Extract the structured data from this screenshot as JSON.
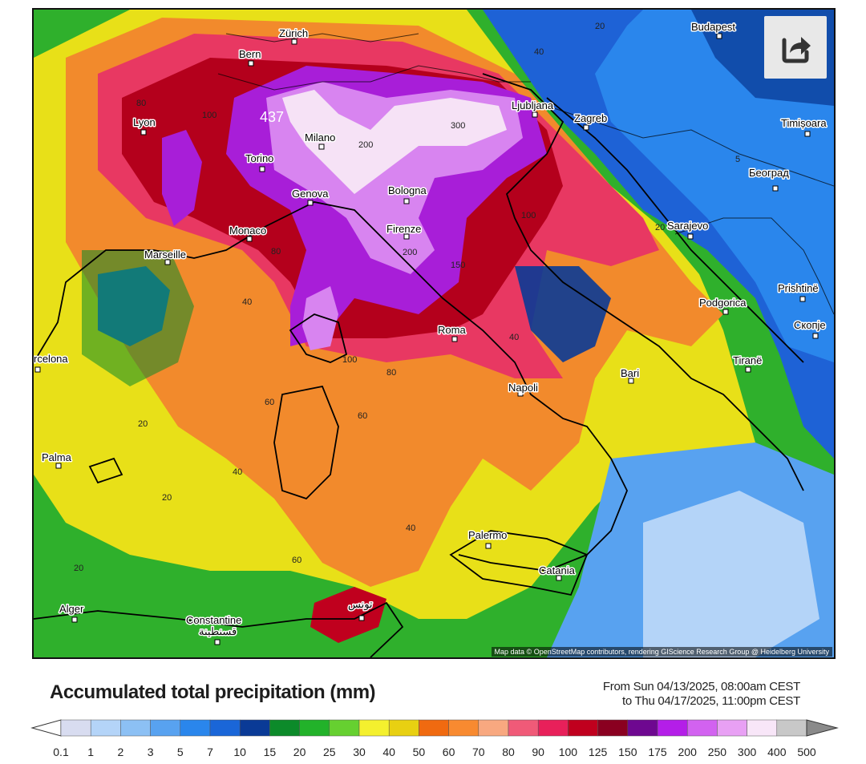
{
  "title": "Accumulated total precipitation (mm)",
  "time_range": {
    "from": "From Sun 04/13/2025, 08:00am CEST",
    "to": "to Thu 04/17/2025, 11:00pm CEST"
  },
  "attribution": "Map data © OpenStreetMap contributors, rendering GIScience Research Group @ Heidelberg University",
  "share_button": {
    "icon": "share-icon"
  },
  "legend": {
    "values": [
      "0.1",
      "1",
      "2",
      "3",
      "5",
      "7",
      "10",
      "15",
      "20",
      "25",
      "30",
      "40",
      "50",
      "60",
      "70",
      "80",
      "90",
      "100",
      "125",
      "150",
      "175",
      "200",
      "250",
      "300",
      "400",
      "500"
    ],
    "colors": [
      "#d8dcf0",
      "#b4d4f8",
      "#8cc0f4",
      "#58a2f0",
      "#2a86ec",
      "#1a66d8",
      "#0a3a96",
      "#0c8a2a",
      "#22b22a",
      "#66d030",
      "#f4f02e",
      "#e8d012",
      "#f06a10",
      "#f88a30",
      "#f8a880",
      "#f05a78",
      "#e8205a",
      "#c0001e",
      "#8a0020",
      "#6e0890",
      "#b41ee8",
      "#d262f0",
      "#e8a0f4",
      "#f8e6f8",
      "#c8c8c8"
    ]
  },
  "cities": [
    {
      "name": "Zürich"
    },
    {
      "name": "Bern"
    },
    {
      "name": "Lyon"
    },
    {
      "name": "Milano"
    },
    {
      "name": "Torino"
    },
    {
      "name": "Genova"
    },
    {
      "name": "Bologna"
    },
    {
      "name": "Firenze"
    },
    {
      "name": "Monaco"
    },
    {
      "name": "Marseille"
    },
    {
      "name": "Roma"
    },
    {
      "name": "Napoli"
    },
    {
      "name": "Bari"
    },
    {
      "name": "Palermo"
    },
    {
      "name": "Catania"
    },
    {
      "name": "Ljubljana"
    },
    {
      "name": "Zagreb"
    },
    {
      "name": "Budapest"
    },
    {
      "name": "Timișoara"
    },
    {
      "name": "Београд"
    },
    {
      "name": "Sarajevo"
    },
    {
      "name": "Podgorica"
    },
    {
      "name": "Prishtinë"
    },
    {
      "name": "Скопје"
    },
    {
      "name": "Tiranë"
    },
    {
      "name": "rcelona"
    },
    {
      "name": "Palma"
    },
    {
      "name": "Alger"
    },
    {
      "name": "Constantine"
    },
    {
      "name": "قسنطينة"
    },
    {
      "name": "تونس"
    }
  ],
  "isolines": [
    "437",
    "300",
    "200",
    "200",
    "150",
    "100",
    "100",
    "100",
    "80",
    "80",
    "80",
    "60",
    "60",
    "60",
    "40",
    "40",
    "40",
    "40",
    "20",
    "20",
    "20",
    "20",
    "5",
    "20",
    "40"
  ]
}
